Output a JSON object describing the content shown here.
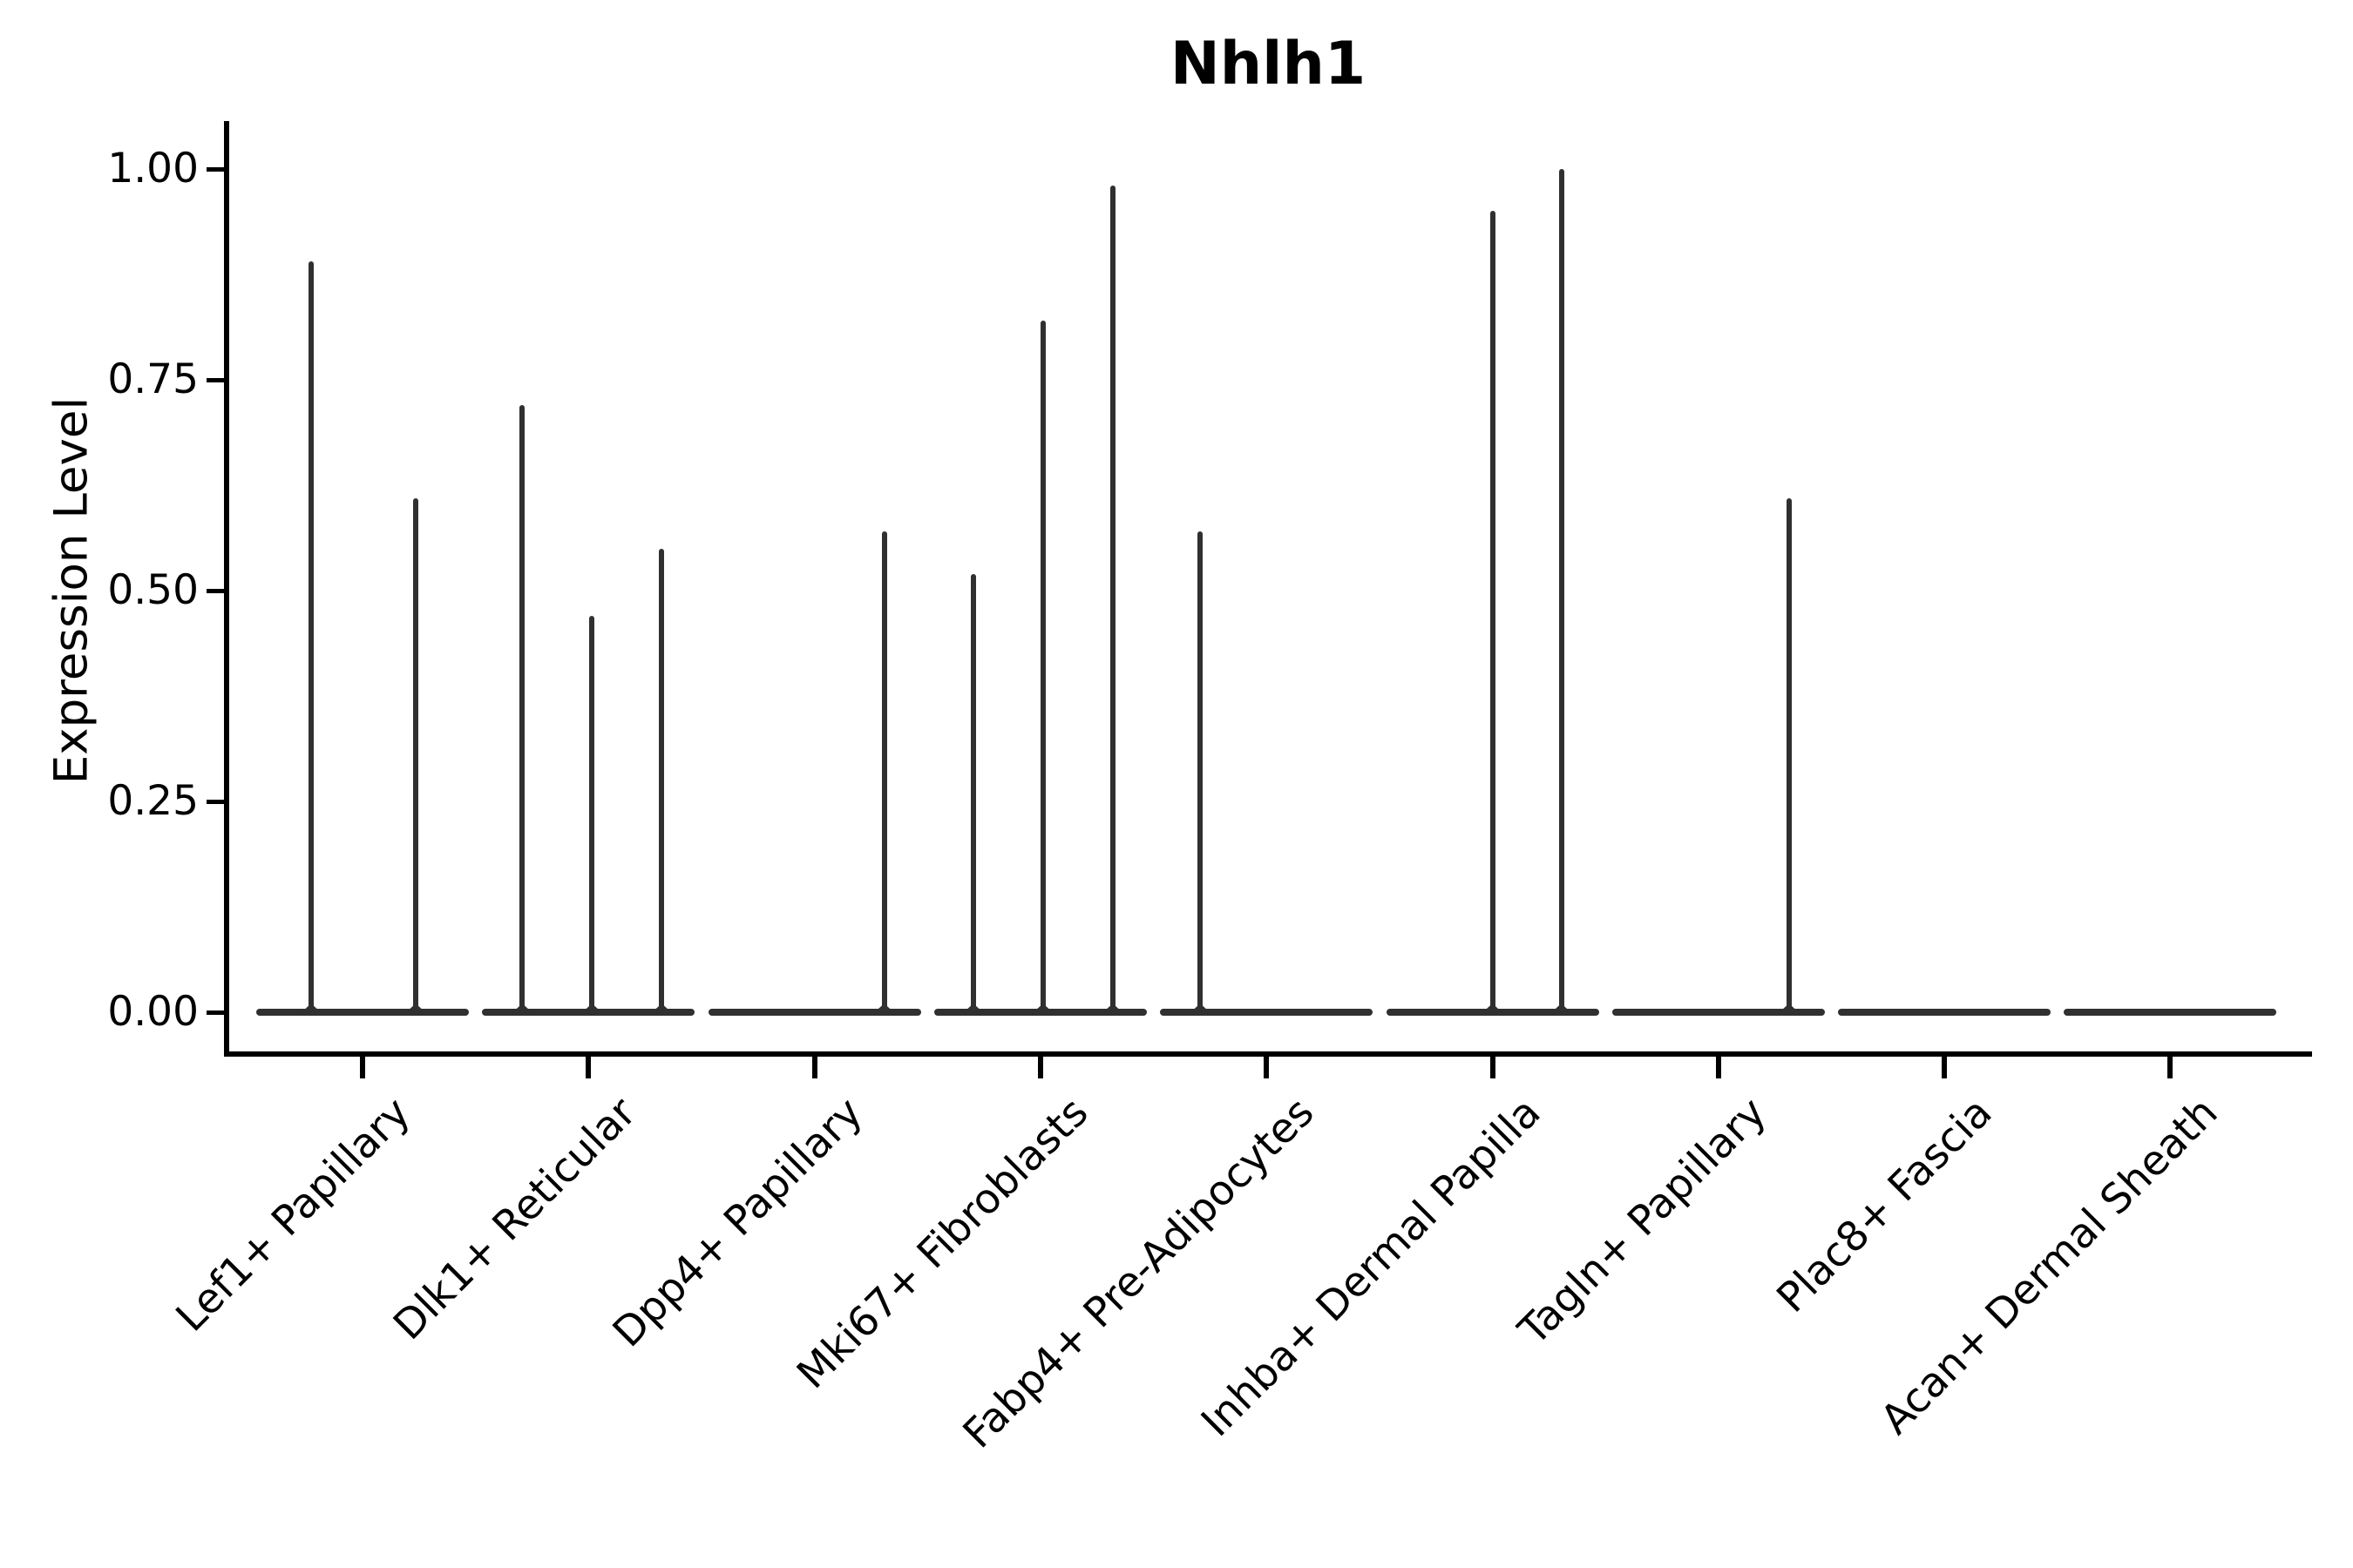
{
  "title": "Nhlh1",
  "y_axis_label": "Expression Level",
  "colors": {
    "violin": "#303030",
    "axis": "#000000",
    "text": "#000000",
    "background": "#ffffff"
  },
  "chart_data": {
    "type": "violin",
    "title": "Nhlh1",
    "xlabel": "",
    "ylabel": "Expression Level",
    "ylim": [
      0,
      1.05
    ],
    "grid": false,
    "legend": "none",
    "ytick_values": [
      1.0,
      0.75,
      0.5,
      0.25,
      0.0
    ],
    "ytick_labels": [
      "1.00",
      "0.75",
      "0.50",
      "0.25",
      "0.00"
    ],
    "categories": [
      "Lef1+ Papillary",
      "Dlk1+ Reticular",
      "Dpp4+ Papillary",
      "Mki67+ Fibroblasts",
      "Fabp4+ Pre-Adipocytes",
      "Inhba+ Dermal Papilla",
      "Tagln+ Papillary",
      "Plac8+ Fascia",
      "Acan+ Dermal Sheath"
    ],
    "violins": [
      {
        "category": "Lef1+ Papillary",
        "baseline_value": 0,
        "spikes": [
          {
            "dx": -59,
            "value": 0.89
          },
          {
            "dx": 61,
            "value": 0.61
          }
        ]
      },
      {
        "category": "Dlk1+ Reticular",
        "baseline_value": 0,
        "spikes": [
          {
            "dx": -76,
            "value": 0.72
          },
          {
            "dx": 4,
            "value": 0.47
          },
          {
            "dx": 84,
            "value": 0.55
          }
        ]
      },
      {
        "category": "Dpp4+ Papillary",
        "baseline_value": 0,
        "spikes": [
          {
            "dx": 80,
            "value": 0.57
          }
        ]
      },
      {
        "category": "Mki67+ Fibroblasts",
        "baseline_value": 0,
        "spikes": [
          {
            "dx": -77,
            "value": 0.52
          },
          {
            "dx": 3,
            "value": 0.82
          },
          {
            "dx": 83,
            "value": 0.98
          }
        ]
      },
      {
        "category": "Fabp4+ Pre-Adipocytes",
        "baseline_value": 0,
        "spikes": [
          {
            "dx": -76,
            "value": 0.57
          }
        ]
      },
      {
        "category": "Inhba+ Dermal Papilla",
        "baseline_value": 0,
        "spikes": [
          {
            "dx": 0,
            "value": 0.95
          },
          {
            "dx": 79,
            "value": 1.0
          }
        ]
      },
      {
        "category": "Tagln+ Papillary",
        "baseline_value": 0,
        "spikes": [
          {
            "dx": 81,
            "value": 0.61
          }
        ]
      },
      {
        "category": "Plac8+ Fascia",
        "baseline_value": 0,
        "spikes": []
      },
      {
        "category": "Acan+ Dermal Sheath",
        "baseline_value": 0,
        "spikes": []
      }
    ]
  }
}
